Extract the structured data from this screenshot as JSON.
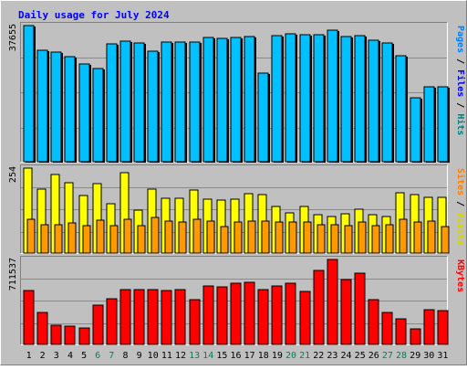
{
  "chart_data": {
    "type": "bar",
    "title": "Daily usage for July 2024",
    "days": [
      1,
      2,
      3,
      4,
      5,
      6,
      7,
      8,
      9,
      10,
      11,
      12,
      13,
      14,
      15,
      16,
      17,
      18,
      19,
      20,
      21,
      22,
      23,
      24,
      25,
      26,
      27,
      28,
      29,
      30,
      31
    ],
    "weekend_days": [
      6,
      7,
      13,
      14,
      20,
      21,
      27,
      28
    ],
    "panels": [
      {
        "name": "pages-files-hits",
        "ymax_label": "37655",
        "ymax": 37655,
        "axis_label": {
          "pages": "Pages",
          "sep1": " / ",
          "files": "Files",
          "sep2": " / ",
          "hits": "Hits"
        },
        "series": [
          {
            "key": "hits",
            "color": "#00c0ff",
            "values": [
              37655,
              30900,
              30400,
              29000,
              27000,
              25700,
              32500,
              33400,
              32900,
              30600,
              33200,
              33000,
              33000,
              34300,
              34100,
              34400,
              34600,
              24600,
              34900,
              35500,
              35200,
              35200,
              36500,
              34600,
              34800,
              33700,
              32800,
              29200,
              17800,
              20800,
              20600
            ]
          }
        ]
      },
      {
        "name": "sites-visits",
        "ymax_label": "254",
        "ymax": 254,
        "axis_label": {
          "sites": "Sites",
          "sep1": " / ",
          "visits": "Visits"
        },
        "series": [
          {
            "key": "visits",
            "color": "#ffff00",
            "values": [
              254,
              190,
              234,
              210,
              172,
              208,
              148,
              240,
              128,
              190,
              164,
              164,
              188,
              160,
              158,
              160,
              178,
              176,
              140,
              120,
              138,
              114,
              108,
              118,
              130,
              114,
              108,
              180,
              176,
              166,
              166
            ]
          },
          {
            "key": "sites",
            "color": "#ff9900",
            "values": [
              100,
              84,
              86,
              90,
              82,
              98,
              82,
              102,
              82,
              106,
              96,
              94,
              100,
              96,
              80,
              94,
              96,
              96,
              94,
              94,
              94,
              84,
              86,
              82,
              94,
              82,
              84,
              100,
              94,
              96,
              78
            ]
          }
        ]
      },
      {
        "name": "kbytes",
        "ymax_label": "711537",
        "ymax": 711537,
        "axis_label": {
          "kbytes": "KBytes"
        },
        "series": [
          {
            "key": "kbytes",
            "color": "#ff0000",
            "values": [
              448000,
              270000,
              160000,
              155000,
              140000,
              330000,
              380000,
              460000,
              460000,
              460000,
              455000,
              458000,
              375000,
              492000,
              485000,
              515000,
              522000,
              462000,
              488000,
              510000,
              445000,
              618000,
              711537,
              540000,
              600000,
              375000,
              270000,
              215000,
              130000,
              288000,
              280000
            ]
          }
        ]
      }
    ],
    "colors": {
      "pages": "#0080ff",
      "files": "#0000ff",
      "hits": "#00c0ff",
      "sites": "#ff8000",
      "visits": "#d6d600",
      "kbytes": "#ff0000",
      "title": "#0000ff",
      "weekday_label": "#000000",
      "weekend_label": "#00805c"
    }
  }
}
